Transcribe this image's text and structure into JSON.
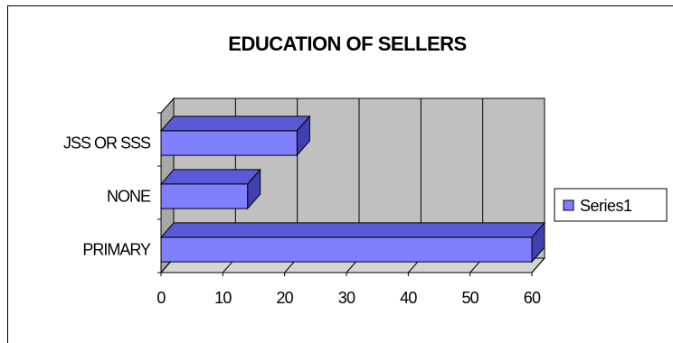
{
  "chart_data": {
    "type": "bar",
    "orientation": "horizontal",
    "three_d": true,
    "title": "EDUCATION OF SELLERS",
    "categories": [
      "JSS OR SSS",
      "NONE",
      "PRIMARY"
    ],
    "series": [
      {
        "name": "Series1",
        "values": [
          22,
          14,
          60
        ],
        "color": "#8080ff"
      }
    ],
    "xlim": [
      0,
      60
    ],
    "xticks": [
      "0",
      "10",
      "20",
      "30",
      "40",
      "50",
      "60"
    ],
    "grid": true,
    "legend_position": "right"
  },
  "colors": {
    "bar_front": "#8080ff",
    "bar_top": "#5a5ad8",
    "bar_side": "#4040b0",
    "plot_back": "#c0c0c0",
    "plot_floor": "#d4d4d4"
  }
}
